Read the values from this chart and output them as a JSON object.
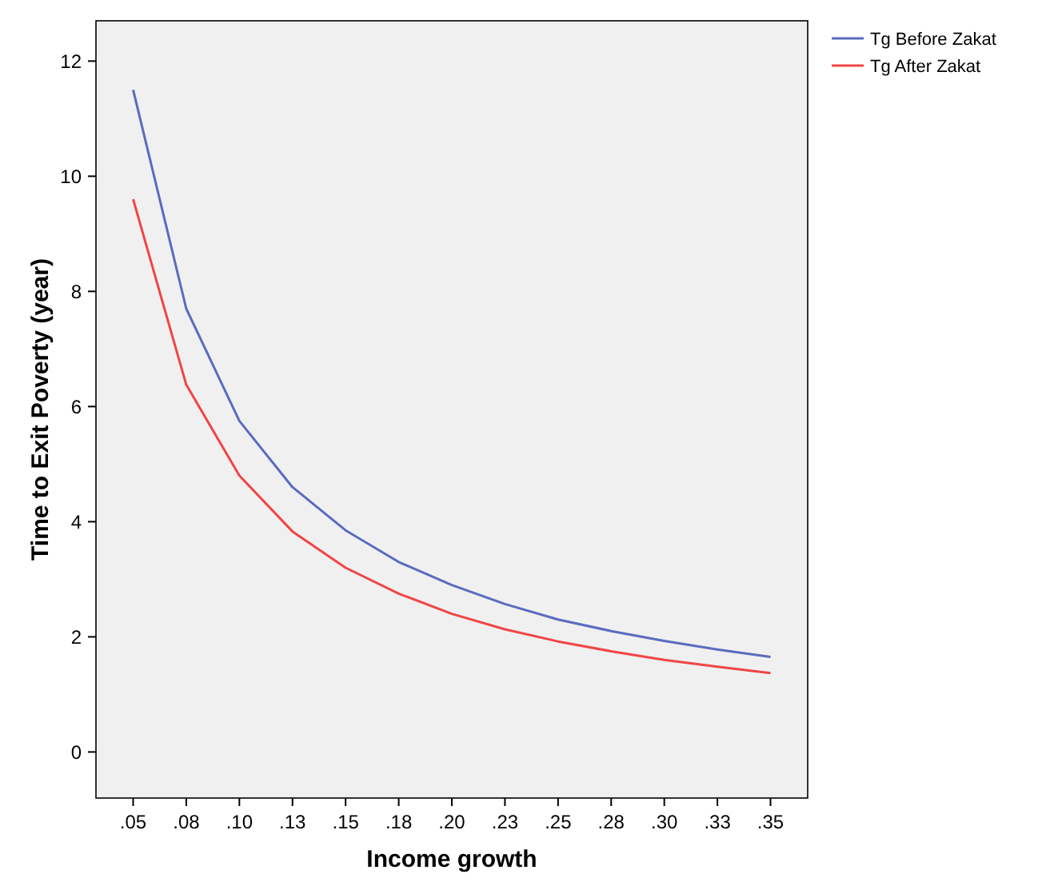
{
  "chart_data": {
    "type": "line",
    "xlabel": "Income growth",
    "ylabel": "Time to Exit Poverty (year)",
    "categories": [
      ".05",
      ".08",
      ".10",
      ".13",
      ".15",
      ".18",
      ".20",
      ".23",
      ".25",
      ".28",
      ".30",
      ".33",
      ".35"
    ],
    "series": [
      {
        "name": "Tg Before Zakat",
        "color": "#5b6bbf",
        "values": [
          11.5,
          7.7,
          5.75,
          4.6,
          3.85,
          3.3,
          2.9,
          2.57,
          2.3,
          2.1,
          1.93,
          1.78,
          1.65
        ]
      },
      {
        "name": "Tg After Zakat",
        "color": "#f04545",
        "values": [
          9.6,
          6.38,
          4.8,
          3.83,
          3.2,
          2.75,
          2.4,
          2.13,
          1.92,
          1.75,
          1.6,
          1.48,
          1.37
        ]
      }
    ],
    "ylim": [
      -0.8,
      12.7
    ],
    "yticks": [
      0,
      2,
      4,
      6,
      8,
      10,
      12
    ],
    "grid": false,
    "legend": "top right",
    "marker": "none",
    "line_style": "solid"
  }
}
